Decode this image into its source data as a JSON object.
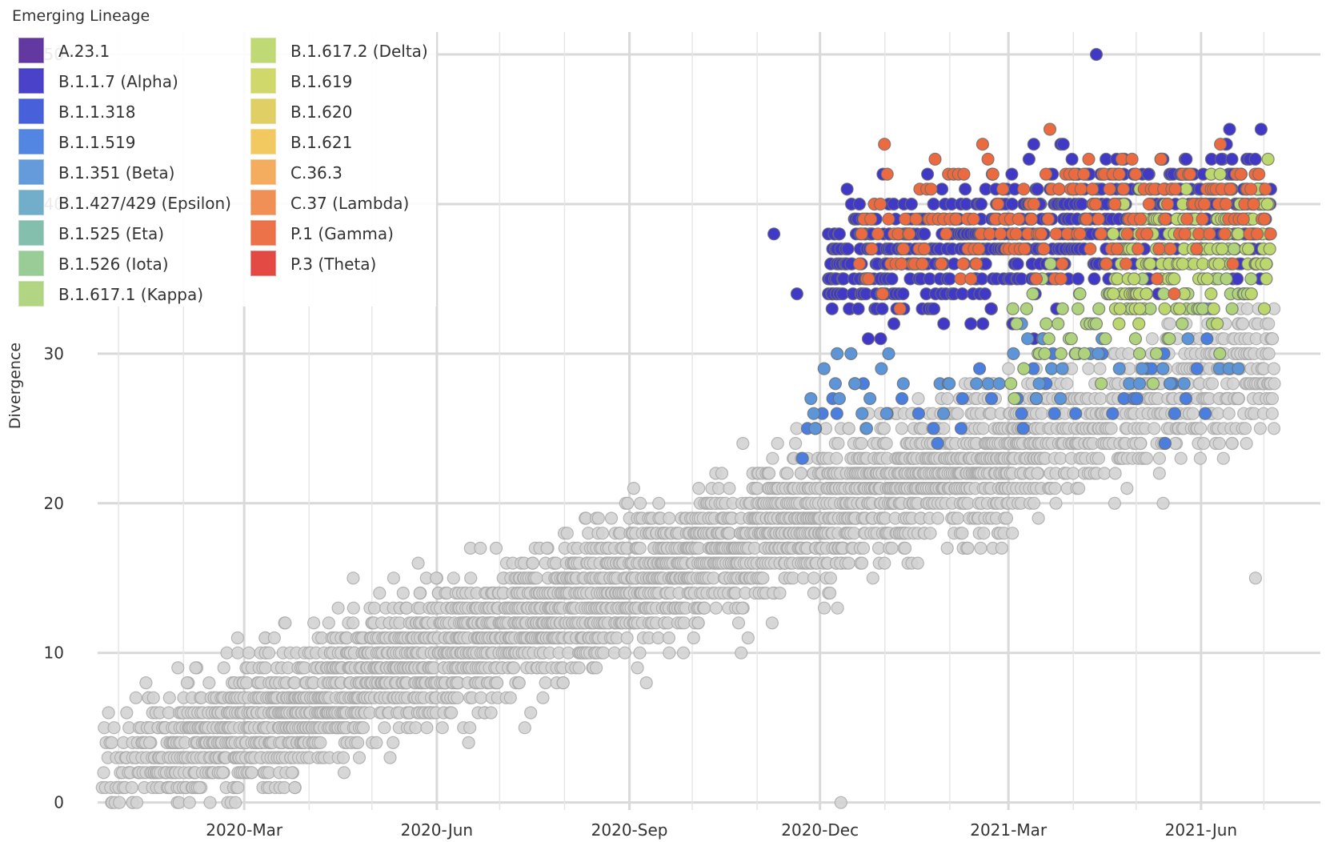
{
  "chart_data": {
    "type": "scatter",
    "title": "",
    "xlabel": "",
    "ylabel": "Divergence",
    "x_axis_type": "date",
    "xlim": [
      "2019-12-22",
      "2021-07-28"
    ],
    "ylim": [
      -0.5,
      51.5
    ],
    "x_ticks": [
      "2020-03-01",
      "2020-06-01",
      "2020-09-01",
      "2020-12-01",
      "2021-03-01",
      "2021-06-01"
    ],
    "x_tick_labels": [
      "2020-Mar",
      "2020-Jun",
      "2020-Sep",
      "2020-Dec",
      "2021-Mar",
      "2021-Jun"
    ],
    "y_ticks": [
      0,
      10,
      20,
      30,
      40,
      50
    ],
    "y_tick_labels": [
      "0",
      "10",
      "20",
      "30",
      "40",
      "50"
    ],
    "grid": true,
    "legend_title": "Emerging Lineage",
    "legend_position": "top-left",
    "other_color": "#d3d3d3",
    "series": [
      {
        "name": "A.23.1",
        "color": "#5c2d9c"
      },
      {
        "name": "B.1.1.7 (Alpha)",
        "color": "#4039c7"
      },
      {
        "name": "B.1.1.318",
        "color": "#3e58d9"
      },
      {
        "name": "B.1.1.519",
        "color": "#4a7fe0"
      },
      {
        "name": "B.1.351 (Beta)",
        "color": "#5d96d8"
      },
      {
        "name": "B.1.427/429 (Epsilon)",
        "color": "#6aaac6"
      },
      {
        "name": "B.1.525 (Eta)",
        "color": "#7dbcaa"
      },
      {
        "name": "B.1.526 (Iota)",
        "color": "#93c990"
      },
      {
        "name": "B.1.617.1 (Kappa)",
        "color": "#aed37c"
      },
      {
        "name": "B.1.617.2 (Delta)",
        "color": "#bcd76e"
      },
      {
        "name": "B.1.619",
        "color": "#cdd664"
      },
      {
        "name": "B.1.620",
        "color": "#ddcc5c"
      },
      {
        "name": "B.1.621",
        "color": "#f1c659"
      },
      {
        "name": "C.36.3",
        "color": "#f3a855"
      },
      {
        "name": "C.37 (Lambda)",
        "color": "#ef8a4d"
      },
      {
        "name": "P.1 (Gamma)",
        "color": "#eb6a40"
      },
      {
        "name": "P.3 (Theta)",
        "color": "#e3403a"
      }
    ],
    "notable_points": [
      {
        "series": "B.1.1.7 (Alpha)",
        "x": "2020-11-09",
        "y": 38
      },
      {
        "series": "B.1.1.7 (Alpha)",
        "x": "2020-11-20",
        "y": 34
      },
      {
        "series": "B.1.1.7 (Alpha)",
        "x": "2021-04-12",
        "y": 50
      },
      {
        "series": "Other",
        "x": "2020-12-11",
        "y": 0
      },
      {
        "series": "Other",
        "x": "2021-06-27",
        "y": 15
      }
    ]
  }
}
